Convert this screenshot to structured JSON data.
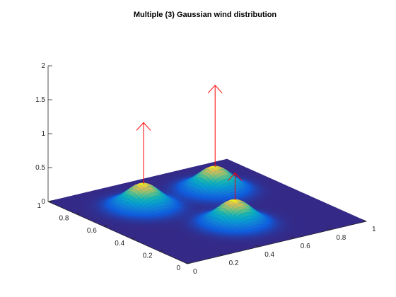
{
  "chart_data": {
    "type": "surface",
    "title": "Multiple (3) Gaussian wind distribution",
    "xlabel": "",
    "ylabel": "",
    "zlabel": "",
    "xlim": [
      0,
      1
    ],
    "ylim": [
      0,
      1
    ],
    "zlim": [
      0,
      2
    ],
    "x_ticks": [
      "0",
      "0.2",
      "0.4",
      "0.6",
      "0.8",
      "1"
    ],
    "y_ticks": [
      "0",
      "0.2",
      "0.4",
      "0.6",
      "0.8",
      "1"
    ],
    "z_ticks": [
      "0",
      "0.5",
      "1",
      "1.5",
      "2"
    ],
    "colormap": "parula",
    "grid": false,
    "gaussians": [
      {
        "x": 0.3,
        "y": 0.7,
        "amplitude": 0.35,
        "sigma": 0.08
      },
      {
        "x": 0.7,
        "y": 0.7,
        "amplitude": 0.35,
        "sigma": 0.08
      },
      {
        "x": 0.5,
        "y": 0.3,
        "amplitude": 0.35,
        "sigma": 0.08
      }
    ],
    "wind_vectors": [
      {
        "x": 0.3,
        "y": 0.7,
        "z0": 0.35,
        "z1": 1.25,
        "color": "#ff0000"
      },
      {
        "x": 0.7,
        "y": 0.7,
        "z0": 0.35,
        "z1": 1.55,
        "color": "#ff0000"
      },
      {
        "x": 0.5,
        "y": 0.3,
        "z0": 0.35,
        "z1": 0.75,
        "color": "#ff0000"
      }
    ]
  }
}
